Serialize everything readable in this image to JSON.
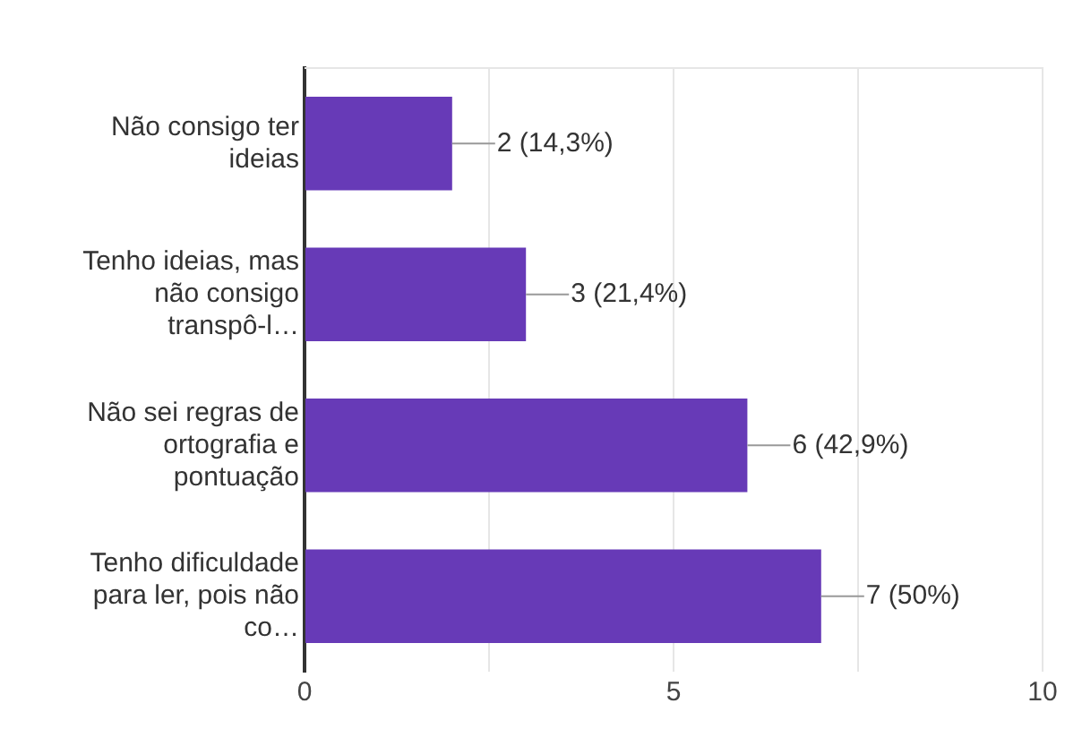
{
  "chart_data": {
    "type": "bar",
    "orientation": "horizontal",
    "categories": [
      "Não consigo ter ideias",
      "Tenho ideias, mas não consigo transpô-l…",
      "Não sei regras de ortografia e pontuação",
      "Tenho dificuldade para ler, pois não co…"
    ],
    "values": [
      2,
      3,
      6,
      7
    ],
    "value_labels": [
      "2 (14,3%)",
      "3 (21,4%)",
      "6 (42,9%)",
      "7 (50%)"
    ],
    "color": "#673ab7",
    "xlim": [
      0,
      10
    ],
    "xticks": [
      0,
      {
        "value": 2.5,
        "label": null
      },
      5,
      {
        "value": 7.5,
        "label": null
      },
      10
    ],
    "grid": "x",
    "legend": false
  }
}
